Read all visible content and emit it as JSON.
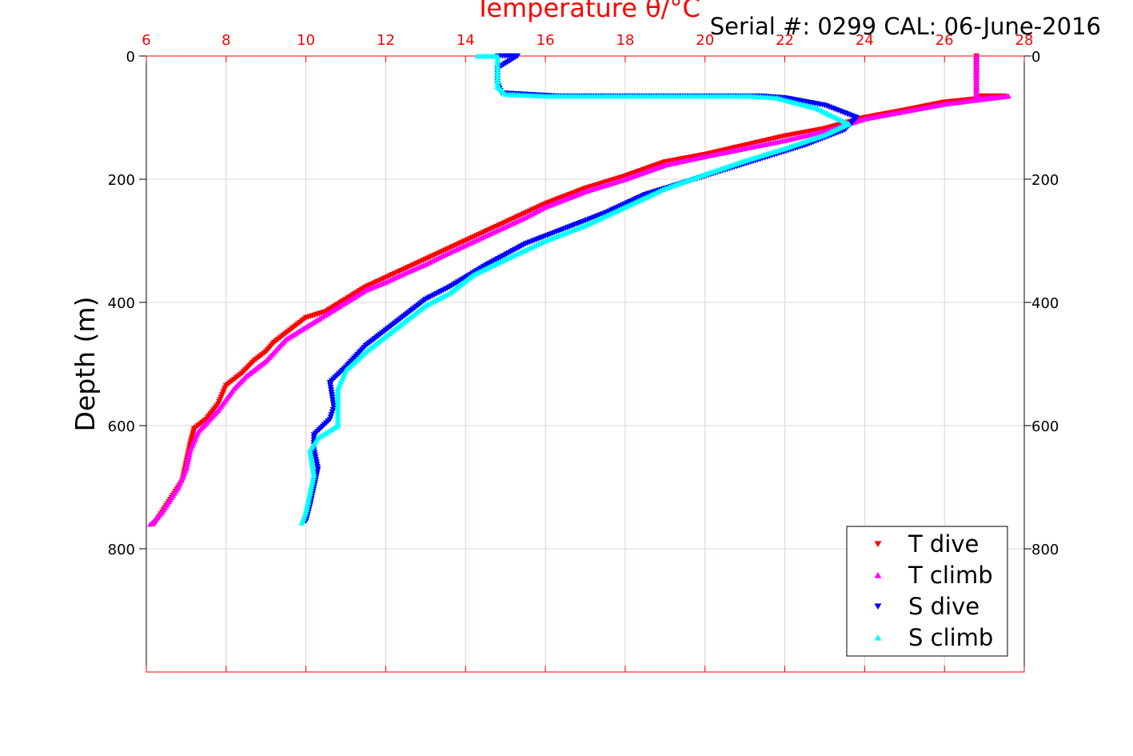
{
  "chart_data": {
    "type": "scatter",
    "title": "Temperature θ/°C",
    "subtitle": "Serial #: 0299 CAL: 06-June-2016",
    "xlabel": "Temperature θ/°C",
    "ylabel": "Depth (m)",
    "xlim": [
      6,
      28
    ],
    "ylim": [
      0,
      1000
    ],
    "y_reversed": true,
    "x_axis_position": "top",
    "grid": true,
    "legend_position": "bottom-right",
    "x_ticks": [
      "6",
      "8",
      "10",
      "12",
      "14",
      "16",
      "18",
      "20",
      "22",
      "24",
      "26",
      "28"
    ],
    "y_ticks": [
      "0",
      "200",
      "400",
      "600",
      "800"
    ],
    "colors": {
      "axis_x": "#ff0000",
      "axis_y": "#000000",
      "grid_x": "#f2c6cf",
      "grid_y": "#d9d9d9"
    },
    "series": [
      {
        "name": "T dive",
        "color": "#ff0000",
        "marker": "triangle-down",
        "points": [
          [
            26.8,
            0
          ],
          [
            26.8,
            20
          ],
          [
            26.8,
            45
          ],
          [
            26.8,
            65
          ],
          [
            27.5,
            65
          ],
          [
            26.0,
            75
          ],
          [
            25.0,
            88
          ],
          [
            24.0,
            100
          ],
          [
            23.0,
            118
          ],
          [
            22.0,
            130
          ],
          [
            21.0,
            145
          ],
          [
            20.0,
            160
          ],
          [
            19.0,
            172
          ],
          [
            18.0,
            195
          ],
          [
            17.0,
            215
          ],
          [
            16.0,
            240
          ],
          [
            15.5,
            255
          ],
          [
            15.0,
            270
          ],
          [
            14.5,
            285
          ],
          [
            14.0,
            300
          ],
          [
            13.5,
            315
          ],
          [
            13.0,
            330
          ],
          [
            12.5,
            345
          ],
          [
            12.0,
            360
          ],
          [
            11.5,
            375
          ],
          [
            11.0,
            395
          ],
          [
            10.5,
            415
          ],
          [
            10.0,
            425
          ],
          [
            9.7,
            440
          ],
          [
            9.5,
            450
          ],
          [
            9.2,
            465
          ],
          [
            9.0,
            480
          ],
          [
            8.7,
            495
          ],
          [
            8.4,
            515
          ],
          [
            8.0,
            535
          ],
          [
            7.8,
            565
          ],
          [
            7.5,
            590
          ],
          [
            7.2,
            605
          ],
          [
            7.1,
            630
          ],
          [
            7.0,
            660
          ],
          [
            6.9,
            690
          ],
          [
            6.7,
            710
          ],
          [
            6.5,
            730
          ],
          [
            6.3,
            750
          ],
          [
            6.2,
            760
          ]
        ]
      },
      {
        "name": "T climb",
        "color": "#ff00ff",
        "marker": "triangle-up",
        "points": [
          [
            26.8,
            0
          ],
          [
            26.8,
            20
          ],
          [
            26.8,
            50
          ],
          [
            26.8,
            70
          ],
          [
            27.6,
            65
          ],
          [
            26.0,
            78
          ],
          [
            25.0,
            90
          ],
          [
            24.0,
            102
          ],
          [
            23.0,
            122
          ],
          [
            22.0,
            137
          ],
          [
            21.0,
            150
          ],
          [
            20.0,
            163
          ],
          [
            19.0,
            177
          ],
          [
            18.0,
            200
          ],
          [
            17.0,
            220
          ],
          [
            16.0,
            245
          ],
          [
            15.5,
            262
          ],
          [
            15.0,
            277
          ],
          [
            14.5,
            292
          ],
          [
            14.0,
            307
          ],
          [
            13.5,
            322
          ],
          [
            13.0,
            338
          ],
          [
            12.5,
            352
          ],
          [
            12.0,
            367
          ],
          [
            11.5,
            380
          ],
          [
            11.0,
            400
          ],
          [
            10.5,
            420
          ],
          [
            10.0,
            440
          ],
          [
            9.5,
            460
          ],
          [
            9.0,
            495
          ],
          [
            8.5,
            520
          ],
          [
            8.2,
            540
          ],
          [
            7.8,
            575
          ],
          [
            7.3,
            610
          ],
          [
            7.1,
            640
          ],
          [
            7.0,
            670
          ],
          [
            6.8,
            700
          ],
          [
            6.6,
            720
          ],
          [
            6.4,
            740
          ],
          [
            6.2,
            755
          ],
          [
            6.1,
            760
          ]
        ]
      },
      {
        "name": "S dive",
        "color": "#0000ff",
        "marker": "triangle-down",
        "points": [
          [
            14.8,
            0
          ],
          [
            15.3,
            0
          ],
          [
            14.8,
            20
          ],
          [
            14.8,
            45
          ],
          [
            14.9,
            60
          ],
          [
            16.3,
            65
          ],
          [
            21.4,
            65
          ],
          [
            22.0,
            68
          ],
          [
            23.0,
            80
          ],
          [
            23.8,
            100
          ],
          [
            23.5,
            120
          ],
          [
            22.5,
            145
          ],
          [
            21.5,
            165
          ],
          [
            20.5,
            185
          ],
          [
            19.5,
            205
          ],
          [
            18.5,
            225
          ],
          [
            17.5,
            255
          ],
          [
            16.5,
            280
          ],
          [
            15.5,
            305
          ],
          [
            14.5,
            340
          ],
          [
            13.6,
            375
          ],
          [
            13.0,
            395
          ],
          [
            12.5,
            420
          ],
          [
            12.0,
            445
          ],
          [
            11.5,
            470
          ],
          [
            11.0,
            505
          ],
          [
            10.6,
            530
          ],
          [
            10.7,
            570
          ],
          [
            10.6,
            590
          ],
          [
            10.2,
            615
          ],
          [
            10.2,
            640
          ],
          [
            10.3,
            670
          ],
          [
            10.2,
            700
          ],
          [
            10.1,
            730
          ],
          [
            10.0,
            755
          ]
        ]
      },
      {
        "name": "S climb",
        "color": "#00ffff",
        "marker": "triangle-up",
        "points": [
          [
            14.3,
            0
          ],
          [
            14.8,
            0
          ],
          [
            14.8,
            25
          ],
          [
            14.8,
            50
          ],
          [
            15.0,
            62
          ],
          [
            16.0,
            65
          ],
          [
            17.0,
            65
          ],
          [
            21.1,
            65
          ],
          [
            21.8,
            68
          ],
          [
            22.8,
            85
          ],
          [
            23.6,
            110
          ],
          [
            23.0,
            128
          ],
          [
            22.0,
            150
          ],
          [
            21.0,
            170
          ],
          [
            20.0,
            192
          ],
          [
            19.0,
            215
          ],
          [
            18.0,
            245
          ],
          [
            17.0,
            275
          ],
          [
            16.0,
            300
          ],
          [
            15.0,
            330
          ],
          [
            14.2,
            355
          ],
          [
            13.6,
            385
          ],
          [
            13.0,
            405
          ],
          [
            12.5,
            430
          ],
          [
            12.0,
            455
          ],
          [
            11.5,
            480
          ],
          [
            11.0,
            510
          ],
          [
            10.8,
            540
          ],
          [
            10.8,
            575
          ],
          [
            10.8,
            600
          ],
          [
            10.3,
            620
          ],
          [
            10.1,
            640
          ],
          [
            10.2,
            680
          ],
          [
            10.1,
            710
          ],
          [
            10.0,
            740
          ],
          [
            9.9,
            758
          ]
        ]
      }
    ]
  }
}
